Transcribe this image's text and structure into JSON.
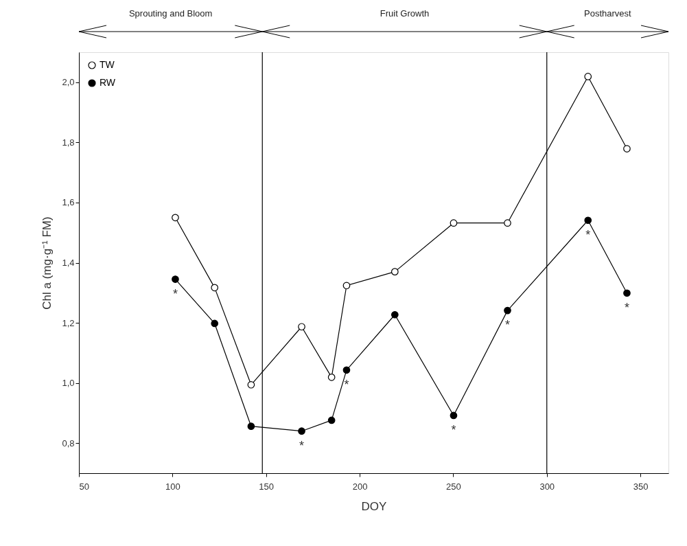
{
  "chart_data": {
    "type": "line",
    "xlabel": "DOY",
    "ylabel": "Chl a (mg·g⁻¹ FM)",
    "x": [
      101.5,
      122.5,
      142,
      169,
      185,
      193,
      218.8,
      250.2,
      279,
      322,
      342.8
    ],
    "series": [
      {
        "name": "TW",
        "color": "#ffffff",
        "values": [
          1.55,
          1.317,
          0.994,
          1.187,
          1.019,
          1.324,
          1.37,
          1.532,
          1.532,
          2.019,
          1.779
        ]
      },
      {
        "name": "RW",
        "color": "#000000",
        "values": [
          1.345,
          1.198,
          0.856,
          0.84,
          0.876,
          1.043,
          1.227,
          0.892,
          1.241,
          1.541,
          1.299
        ]
      }
    ],
    "xlim": [
      50,
      365
    ],
    "xticks": [
      50,
      100,
      150,
      200,
      250,
      300,
      350
    ],
    "ylim": [
      0.7,
      2.1
    ],
    "yticks": [
      {
        "value": 0.8,
        "label": "0,8"
      },
      {
        "value": 1.0,
        "label": "1,0"
      },
      {
        "value": 1.2,
        "label": "1,2"
      },
      {
        "value": 1.4,
        "label": "1,4"
      },
      {
        "value": 1.6,
        "label": "1,6"
      },
      {
        "value": 1.8,
        "label": "1,8"
      },
      {
        "value": 2.0,
        "label": "2,0"
      }
    ],
    "ref_lines": [
      {
        "axis": "x",
        "value": 148
      },
      {
        "axis": "x",
        "value": 300
      }
    ],
    "annotations": [
      "Sprouting and Bloom",
      "Fruit Growth",
      "Postharvest",
      {
        "text": "*",
        "x": 101.5,
        "y": 1.345
      },
      {
        "text": "*",
        "x": 169,
        "y": 0.84
      },
      {
        "text": "*",
        "x": 193,
        "y": 1.043
      },
      {
        "text": "*",
        "x": 250.2,
        "y": 0.892
      },
      {
        "text": "*",
        "x": 279,
        "y": 1.241
      },
      {
        "text": "*",
        "x": 322,
        "y": 1.541
      },
      {
        "text": "*",
        "x": 342.8,
        "y": 1.299
      }
    ],
    "legend": "top left",
    "marker": "circle",
    "line_style": "solid",
    "grid": false
  }
}
